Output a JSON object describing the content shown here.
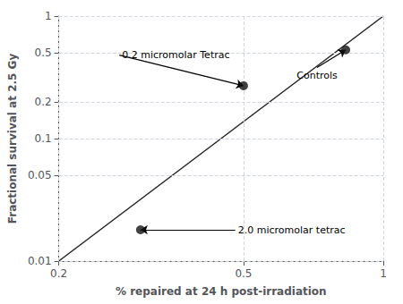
{
  "chart_data": {
    "type": "scatter",
    "xlabel": "% repaired at 24 h post-irradiation",
    "ylabel": "Fractional survival at 2.5 Gy",
    "log": true,
    "grid": true,
    "xlim": [
      0.2,
      1.0
    ],
    "ylim": [
      0.01,
      1.0
    ],
    "xticks": [
      0.2,
      0.5,
      1
    ],
    "yticks": [
      0.01,
      0.05,
      0.1,
      0.2,
      0.5,
      1
    ],
    "series": [
      {
        "type": "line",
        "color": "#222222",
        "x": [
          0.2,
          1.0
        ],
        "values": [
          0.01,
          1.0
        ]
      },
      {
        "type": "scatter",
        "color": "#111111",
        "x": [
          0.83,
          0.5,
          0.3
        ],
        "values": [
          0.53,
          0.27,
          0.018
        ]
      }
    ],
    "annotations": [
      {
        "text": "Controls",
        "x": 0.83,
        "y": 0.53,
        "text_x": 0.72,
        "text_y": 0.38
      },
      {
        "text": "0.2 micromolar Tetrac",
        "x": 0.5,
        "y": 0.27,
        "text_x": 0.27,
        "text_y": 0.48
      },
      {
        "text": "2.0 micromolar tetrac",
        "x": 0.3,
        "y": 0.018,
        "text_x": 0.48,
        "text_y": 0.018
      }
    ]
  }
}
